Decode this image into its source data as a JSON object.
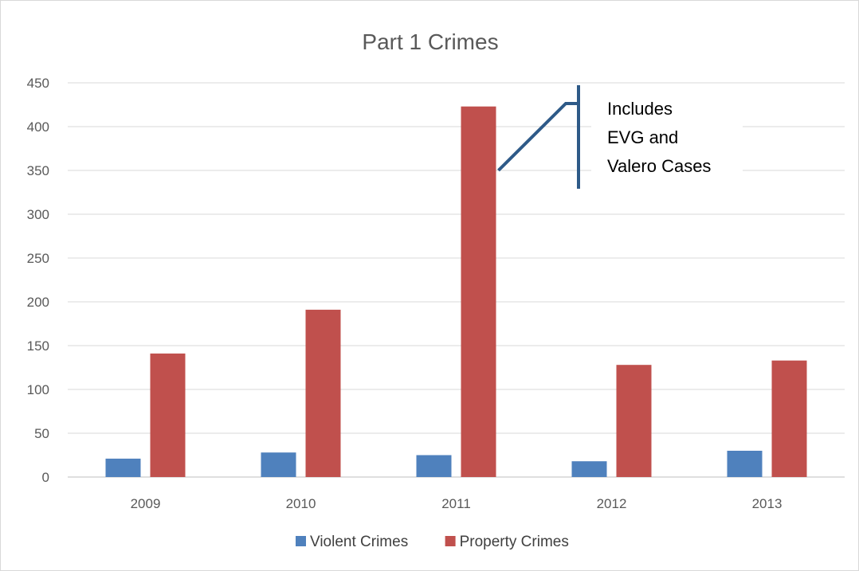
{
  "chart_data": {
    "type": "bar",
    "title": "Part 1 Crimes",
    "categories": [
      "2009",
      "2010",
      "2011",
      "2012",
      "2013"
    ],
    "series": [
      {
        "name": "Violent Crimes",
        "color": "#4f81bd",
        "values": [
          21,
          28,
          25,
          18,
          30
        ]
      },
      {
        "name": "Property Crimes",
        "color": "#c0504d",
        "values": [
          141,
          191,
          423,
          128,
          133
        ]
      }
    ],
    "ylim": [
      0,
      450
    ],
    "yticks": [
      "0",
      "50",
      "100",
      "150",
      "200",
      "250",
      "300",
      "350",
      "400",
      "450"
    ],
    "grid": true,
    "legend_position": "bottom",
    "annotation": {
      "lines": [
        "Includes",
        "EVG and",
        "Valero Cases"
      ],
      "category": "2011",
      "series": "Property Crimes",
      "value": 350
    }
  }
}
